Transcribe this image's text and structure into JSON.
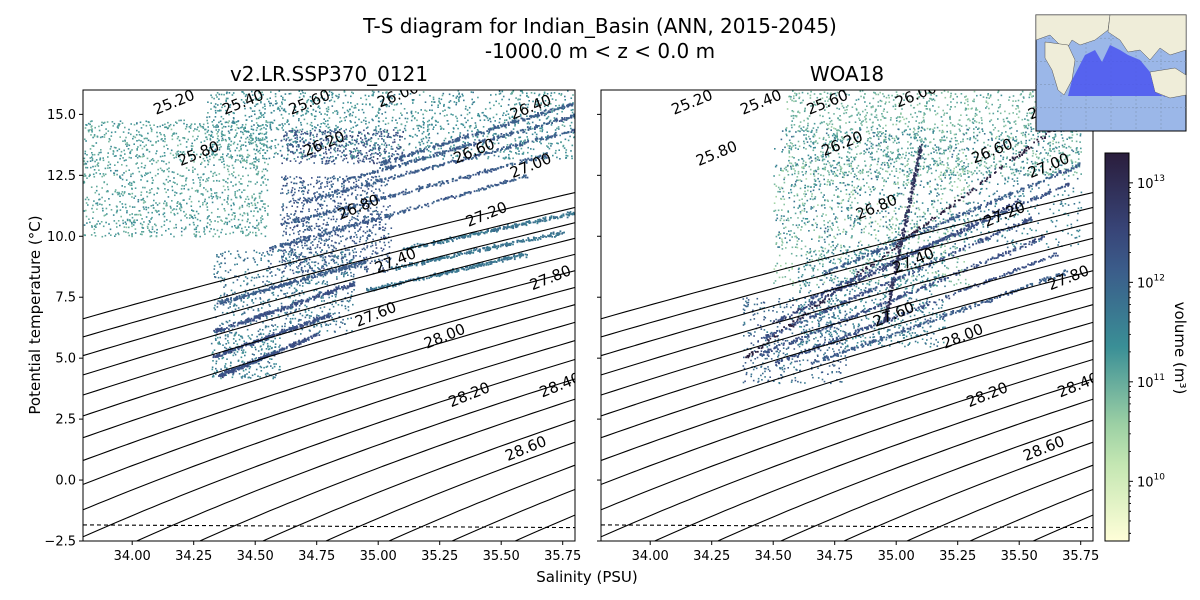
{
  "figure": {
    "title_line1": "T-S diagram for Indian_Basin (ANN, 2015-2045)",
    "title_line2": "-1000.0 m < z < 0.0 m"
  },
  "colors": {
    "cmap_low": "#fffed8",
    "cmap_mid": "#3a8f96",
    "cmap_high": "#2a1d3c",
    "contour": "#000000",
    "ocean": "#9bb7e8",
    "land": "#efedd9",
    "basin": "#4a55f0"
  },
  "chart_data": {
    "type": "scatter",
    "subtype": "T-S volume density diagram with potential density contours",
    "xlabel": "Salinity (PSU)",
    "ylabel": "Potential temperature (°C)",
    "xlim": [
      33.8,
      35.8
    ],
    "ylim": [
      -2.5,
      16.0
    ],
    "x_ticks": [
      "34.00",
      "34.25",
      "34.50",
      "34.75",
      "35.00",
      "35.25",
      "35.50",
      "35.75"
    ],
    "x_tick_values": [
      34.0,
      34.25,
      34.5,
      34.75,
      35.0,
      35.25,
      35.5,
      35.75
    ],
    "y_ticks": [
      "−2.5",
      "0.0",
      "2.5",
      "5.0",
      "7.5",
      "10.0",
      "12.5",
      "15.0"
    ],
    "y_tick_values": [
      -2.5,
      0.0,
      2.5,
      5.0,
      7.5,
      10.0,
      12.5,
      15.0
    ],
    "freezing_line": {
      "style": "dashed",
      "y_at_xmin": -1.84,
      "y_at_xmax": -1.95
    },
    "contour_labels": [
      {
        "text": "25.20",
        "s": 34.17,
        "t": 15.5
      },
      {
        "text": "25.40",
        "s": 34.45,
        "t": 15.5
      },
      {
        "text": "25.60",
        "s": 34.72,
        "t": 15.5
      },
      {
        "text": "25.80",
        "s": 34.27,
        "t": 13.4
      },
      {
        "text": "26.00",
        "s": 35.08,
        "t": 15.8
      },
      {
        "text": "26.20",
        "s": 34.78,
        "t": 13.8
      },
      {
        "text": "26.40",
        "s": 35.62,
        "t": 15.3
      },
      {
        "text": "26.60",
        "s": 35.39,
        "t": 13.5
      },
      {
        "text": "26.80",
        "s": 34.92,
        "t": 11.2
      },
      {
        "text": "27.00",
        "s": 35.62,
        "t": 12.9
      },
      {
        "text": "27.20",
        "s": 35.44,
        "t": 10.9
      },
      {
        "text": "27.40",
        "s": 35.07,
        "t": 9.0
      },
      {
        "text": "27.60",
        "s": 34.99,
        "t": 6.8
      },
      {
        "text": "27.80",
        "s": 35.7,
        "t": 8.3
      },
      {
        "text": "28.00",
        "s": 35.27,
        "t": 5.9
      },
      {
        "text": "28.20",
        "s": 35.37,
        "t": 3.5
      },
      {
        "text": "28.40",
        "s": 35.74,
        "t": 3.9
      },
      {
        "text": "28.60",
        "s": 35.6,
        "t": 1.3
      }
    ],
    "panels": [
      {
        "title": "v2.LR.SSP370_0121",
        "clouds": [
          {
            "s0": 33.8,
            "s1": 34.55,
            "t0": 10.0,
            "t1": 14.8,
            "lvl": 0.45,
            "n": 1300
          },
          {
            "s0": 34.3,
            "s1": 35.8,
            "t0": 13.2,
            "t1": 16.0,
            "lvl": 0.5,
            "n": 1400
          },
          {
            "s0": 34.6,
            "s1": 35.1,
            "t0": 13.0,
            "t1": 14.4,
            "lvl": 0.75,
            "n": 350
          },
          {
            "s0": 34.6,
            "s1": 35.05,
            "t0": 8.5,
            "t1": 12.5,
            "lvl": 0.7,
            "n": 900
          },
          {
            "s0": 34.33,
            "s1": 34.9,
            "t0": 6.0,
            "t1": 9.5,
            "lvl": 0.6,
            "n": 600
          },
          {
            "s0": 34.32,
            "s1": 34.6,
            "t0": 4.2,
            "t1": 6.0,
            "lvl": 0.55,
            "n": 220
          }
        ],
        "streaks": [
          {
            "s0": 34.35,
            "t0": 4.3,
            "s1": 34.75,
            "t1": 6.0,
            "lvl": 0.75
          },
          {
            "s0": 34.33,
            "t0": 5.1,
            "s1": 34.8,
            "t1": 6.8,
            "lvl": 0.75
          },
          {
            "s0": 34.33,
            "t0": 6.1,
            "s1": 34.9,
            "t1": 8.1,
            "lvl": 0.75
          },
          {
            "s0": 34.35,
            "t0": 7.3,
            "s1": 34.95,
            "t1": 9.0,
            "lvl": 0.7
          },
          {
            "s0": 34.55,
            "t0": 9.5,
            "s1": 35.6,
            "t1": 12.5,
            "lvl": 0.7
          },
          {
            "s0": 34.6,
            "t0": 10.5,
            "s1": 35.7,
            "t1": 13.4,
            "lvl": 0.7
          },
          {
            "s0": 34.7,
            "t0": 11.5,
            "s1": 35.8,
            "t1": 14.4,
            "lvl": 0.7
          },
          {
            "s0": 34.85,
            "t0": 12.3,
            "s1": 35.8,
            "t1": 15.0,
            "lvl": 0.7
          },
          {
            "s0": 35.0,
            "t0": 13.0,
            "s1": 35.8,
            "t1": 15.5,
            "lvl": 0.7
          },
          {
            "s0": 35.1,
            "t0": 9.5,
            "s1": 35.8,
            "t1": 11.0,
            "lvl": 0.6
          },
          {
            "s0": 35.05,
            "t0": 8.7,
            "s1": 35.75,
            "t1": 10.2,
            "lvl": 0.6
          },
          {
            "s0": 34.95,
            "t0": 7.8,
            "s1": 35.6,
            "t1": 9.3,
            "lvl": 0.6
          }
        ]
      },
      {
        "title": "WOA18",
        "clouds": [
          {
            "s0": 34.55,
            "s1": 35.75,
            "t0": 12.5,
            "t1": 16.0,
            "lvl": 0.4,
            "n": 1400
          },
          {
            "s0": 34.5,
            "s1": 35.3,
            "t0": 8.0,
            "t1": 13.0,
            "lvl": 0.35,
            "n": 700
          },
          {
            "s0": 34.5,
            "s1": 35.75,
            "t0": 9.5,
            "t1": 14.5,
            "lvl": 0.55,
            "n": 1000
          },
          {
            "s0": 34.37,
            "s1": 34.8,
            "t0": 4.0,
            "t1": 7.5,
            "lvl": 0.65,
            "n": 400
          },
          {
            "s0": 34.6,
            "s1": 35.2,
            "t0": 5.5,
            "t1": 9.5,
            "lvl": 0.55,
            "n": 700
          }
        ],
        "streaks": [
          {
            "s0": 34.38,
            "t0": 5.0,
            "s1": 35.9,
            "t1": 16.4,
            "lvl": 1.0
          },
          {
            "s0": 34.5,
            "t0": 6.5,
            "s1": 35.5,
            "t1": 11.5,
            "lvl": 0.8
          },
          {
            "s0": 34.45,
            "t0": 5.8,
            "s1": 35.55,
            "t1": 10.8,
            "lvl": 0.75
          },
          {
            "s0": 34.45,
            "t0": 5.2,
            "s1": 35.6,
            "t1": 10.0,
            "lvl": 0.75
          },
          {
            "s0": 34.5,
            "t0": 4.8,
            "s1": 35.65,
            "t1": 9.3,
            "lvl": 0.75
          },
          {
            "s0": 34.65,
            "t0": 4.8,
            "s1": 35.7,
            "t1": 8.6,
            "lvl": 0.7
          },
          {
            "s0": 34.65,
            "t0": 7.5,
            "s1": 35.7,
            "t1": 12.2,
            "lvl": 0.75
          },
          {
            "s0": 34.7,
            "t0": 8.5,
            "s1": 35.75,
            "t1": 13.0,
            "lvl": 0.7
          },
          {
            "s0": 34.95,
            "t0": 6.5,
            "s1": 35.1,
            "t1": 13.8,
            "lvl": 0.9
          }
        ]
      }
    ],
    "colorbar": {
      "label": "volume (m³)",
      "scale": "log",
      "vmin_log10": 9.4,
      "vmax_log10": 13.3,
      "ticks": [
        {
          "label": "10",
          "exp": "10",
          "log10": 10
        },
        {
          "label": "10",
          "exp": "11",
          "log10": 11
        },
        {
          "label": "10",
          "exp": "12",
          "log10": 12
        },
        {
          "label": "10",
          "exp": "13",
          "log10": 13
        }
      ]
    },
    "inset_map": {
      "description_visible": true,
      "highlighted_region": "Indian Ocean basin"
    }
  }
}
